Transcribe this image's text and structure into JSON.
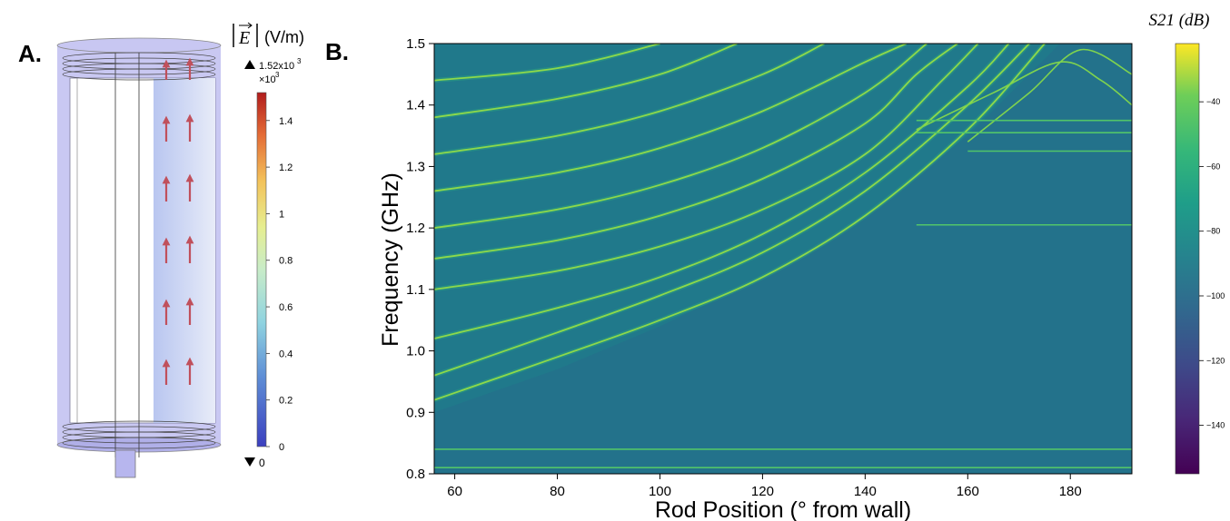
{
  "panel_a": {
    "label": "A.",
    "field_label": "(V/m)",
    "max_text": "1.52x10",
    "max_exp": "3",
    "scale_text": "×10",
    "scale_exp": "3",
    "min_text": "0",
    "colorbar_ticks": [
      "1.4",
      "1.2",
      "1",
      "0.8",
      "0.6",
      "0.4",
      "0.2",
      "0"
    ],
    "colors": {
      "shell": "#b7b6ee",
      "rod_glow": "#9fb0ea",
      "arrow": "#c0505c"
    }
  },
  "panel_b": {
    "label": "B.",
    "colorbar_title": "S21 (dB)",
    "colorbar_ticks": [
      "−40",
      "−60",
      "−80",
      "−100",
      "−120",
      "−140"
    ]
  },
  "chart_data": {
    "type": "heatmap",
    "title": "",
    "xlabel": "Rod Position (° from wall)",
    "ylabel": "Frequency (GHz)",
    "xlim": [
      56,
      192
    ],
    "ylim": [
      0.8,
      1.5
    ],
    "x_ticks": [
      60,
      80,
      100,
      120,
      140,
      160,
      180
    ],
    "y_ticks": [
      "0.8",
      "0.9",
      "1.0",
      "1.1",
      "1.2",
      "1.3",
      "1.4",
      "1.5"
    ],
    "colorbar": {
      "label": "S21 (dB)",
      "range": [
        -155,
        -22
      ],
      "colormap": "viridis"
    },
    "background_level_db": -95,
    "mode_curves": [
      {
        "x": [
          56,
          80,
          100,
          120,
          140,
          160,
          175
        ],
        "y": [
          0.92,
          0.99,
          1.05,
          1.12,
          1.22,
          1.36,
          1.5
        ]
      },
      {
        "x": [
          56,
          80,
          100,
          120,
          140,
          160,
          172
        ],
        "y": [
          0.96,
          1.03,
          1.09,
          1.16,
          1.26,
          1.4,
          1.5
        ]
      },
      {
        "x": [
          56,
          80,
          100,
          120,
          140,
          160,
          168
        ],
        "y": [
          1.02,
          1.07,
          1.12,
          1.19,
          1.29,
          1.43,
          1.5
        ]
      },
      {
        "x": [
          56,
          80,
          100,
          120,
          140,
          155,
          162
        ],
        "y": [
          1.1,
          1.13,
          1.17,
          1.23,
          1.32,
          1.44,
          1.5
        ]
      },
      {
        "x": [
          56,
          80,
          100,
          120,
          140,
          150,
          158
        ],
        "y": [
          1.15,
          1.18,
          1.22,
          1.28,
          1.37,
          1.45,
          1.5
        ]
      },
      {
        "x": [
          56,
          80,
          100,
          120,
          140,
          152
        ],
        "y": [
          1.2,
          1.23,
          1.27,
          1.33,
          1.42,
          1.5
        ]
      },
      {
        "x": [
          56,
          80,
          100,
          120,
          140,
          148
        ],
        "y": [
          1.26,
          1.29,
          1.33,
          1.39,
          1.47,
          1.5
        ]
      },
      {
        "x": [
          56,
          80,
          100,
          120,
          132
        ],
        "y": [
          1.32,
          1.35,
          1.39,
          1.45,
          1.5
        ]
      },
      {
        "x": [
          56,
          80,
          100,
          115
        ],
        "y": [
          1.38,
          1.41,
          1.45,
          1.5
        ]
      },
      {
        "x": [
          56,
          80,
          100
        ],
        "y": [
          1.44,
          1.46,
          1.5
        ]
      }
    ],
    "flat_lines": [
      {
        "y": 1.375,
        "x_start": 150
      },
      {
        "y": 1.355,
        "x_start": 150
      },
      {
        "y": 1.325,
        "x_start": 160
      },
      {
        "y": 1.205,
        "x_start": 150
      },
      {
        "y": 0.84,
        "x_start": 56
      },
      {
        "y": 0.81,
        "x_start": 56
      }
    ],
    "crossing_curves": [
      {
        "x": [
          150,
          165,
          178,
          186,
          192
        ],
        "y": [
          1.36,
          1.42,
          1.47,
          1.44,
          1.4
        ]
      },
      {
        "x": [
          160,
          172,
          182,
          192
        ],
        "y": [
          1.34,
          1.42,
          1.49,
          1.45
        ]
      }
    ]
  }
}
